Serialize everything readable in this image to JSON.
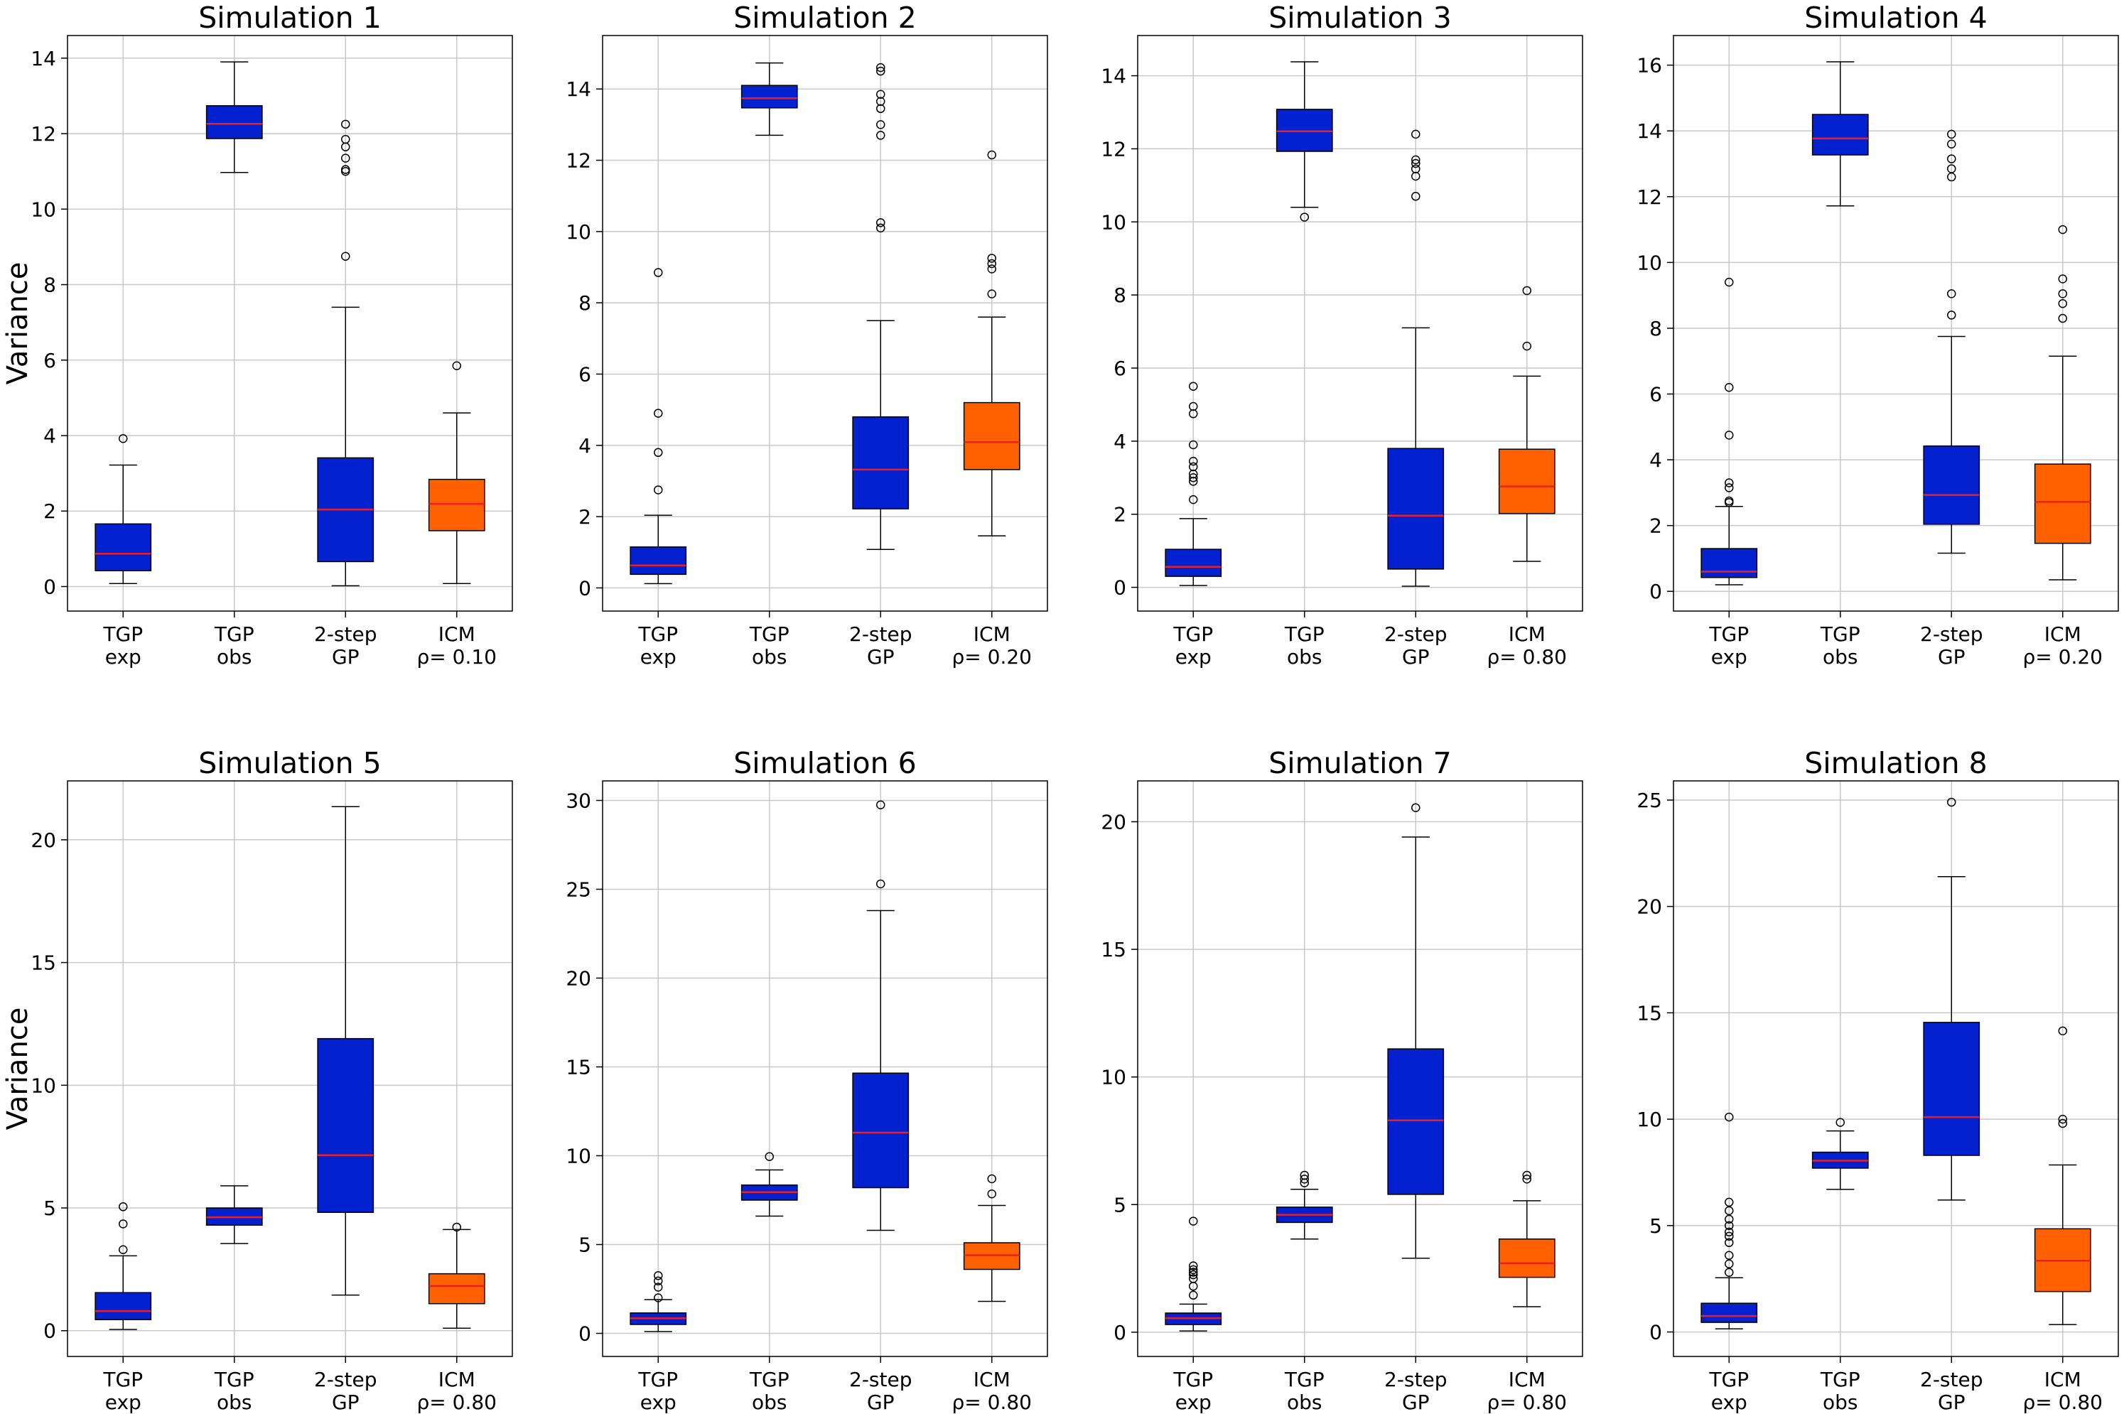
{
  "figure": {
    "colors": {
      "tgp": "#0421cf",
      "icm": "#ff6000",
      "median": "#e8202a",
      "whisker": "#000000",
      "grid": "#c8c8c8"
    }
  },
  "chart_data": [
    {
      "type": "box",
      "title": "Simulation 1",
      "ylabel": "Variance",
      "ylim": [
        -0.65,
        14.6
      ],
      "yticks": [
        0,
        2,
        4,
        6,
        8,
        10,
        12,
        14
      ],
      "categories": [
        {
          "line1": "TGP",
          "line2": "exp"
        },
        {
          "line1": "TGP",
          "line2": "obs"
        },
        {
          "line1": "2-step",
          "line2": "GP"
        },
        {
          "line1": "ICM",
          "line2": "ρ= 0.10"
        }
      ],
      "boxes": [
        {
          "whislo": 0.08,
          "q1": 0.42,
          "med": 0.87,
          "q3": 1.66,
          "whishi": 3.22,
          "fliers": [
            3.92
          ],
          "color": "tgp"
        },
        {
          "whislo": 10.97,
          "q1": 11.87,
          "med": 12.26,
          "q3": 12.74,
          "whishi": 13.9,
          "fliers": [],
          "color": "tgp"
        },
        {
          "whislo": 0.02,
          "q1": 0.66,
          "med": 2.04,
          "q3": 3.41,
          "whishi": 7.4,
          "fliers": [
            8.75,
            11.0,
            11.05,
            11.35,
            11.65,
            11.85,
            12.25
          ],
          "color": "tgp"
        },
        {
          "whislo": 0.08,
          "q1": 1.48,
          "med": 2.19,
          "q3": 2.84,
          "whishi": 4.6,
          "fliers": [
            5.85
          ],
          "color": "icm"
        }
      ]
    },
    {
      "type": "box",
      "title": "Simulation 2",
      "ylabel": "",
      "ylim": [
        -0.65,
        15.5
      ],
      "yticks": [
        0,
        2,
        4,
        6,
        8,
        10,
        12,
        14
      ],
      "categories": [
        {
          "line1": "TGP",
          "line2": "exp"
        },
        {
          "line1": "TGP",
          "line2": "obs"
        },
        {
          "line1": "2-step",
          "line2": "GP"
        },
        {
          "line1": "ICM",
          "line2": "ρ= 0.20"
        }
      ],
      "boxes": [
        {
          "whislo": 0.12,
          "q1": 0.38,
          "med": 0.63,
          "q3": 1.15,
          "whishi": 2.04,
          "fliers": [
            2.75,
            3.8,
            4.9,
            8.85
          ],
          "color": "tgp"
        },
        {
          "whislo": 12.7,
          "q1": 13.47,
          "med": 13.74,
          "q3": 14.1,
          "whishi": 14.73,
          "fliers": [],
          "color": "tgp"
        },
        {
          "whislo": 1.08,
          "q1": 2.22,
          "med": 3.32,
          "q3": 4.8,
          "whishi": 7.5,
          "fliers": [
            10.1,
            10.25,
            12.7,
            13.0,
            13.45,
            13.65,
            13.85,
            14.5,
            14.6
          ],
          "color": "tgp"
        },
        {
          "whislo": 1.46,
          "q1": 3.32,
          "med": 4.09,
          "q3": 5.2,
          "whishi": 7.6,
          "fliers": [
            8.25,
            8.95,
            9.1,
            9.25,
            12.15
          ],
          "color": "icm"
        }
      ]
    },
    {
      "type": "box",
      "title": "Simulation 3",
      "ylabel": "",
      "ylim": [
        -0.65,
        15.1
      ],
      "yticks": [
        0,
        2,
        4,
        6,
        8,
        10,
        12,
        14
      ],
      "categories": [
        {
          "line1": "TGP",
          "line2": "exp"
        },
        {
          "line1": "TGP",
          "line2": "obs"
        },
        {
          "line1": "2-step",
          "line2": "GP"
        },
        {
          "line1": "ICM",
          "line2": "ρ= 0.80"
        }
      ],
      "boxes": [
        {
          "whislo": 0.05,
          "q1": 0.3,
          "med": 0.56,
          "q3": 1.04,
          "whishi": 1.88,
          "fliers": [
            2.4,
            2.9,
            3.0,
            3.1,
            3.3,
            3.45,
            3.9,
            4.75,
            4.95,
            5.5
          ],
          "color": "tgp"
        },
        {
          "whislo": 10.4,
          "q1": 11.93,
          "med": 12.48,
          "q3": 13.08,
          "whishi": 14.38,
          "fliers": [
            10.13
          ],
          "color": "tgp"
        },
        {
          "whislo": 0.03,
          "q1": 0.5,
          "med": 1.96,
          "q3": 3.8,
          "whishi": 7.1,
          "fliers": [
            10.7,
            11.25,
            11.45,
            11.6,
            11.7,
            12.4
          ],
          "color": "tgp"
        },
        {
          "whislo": 0.71,
          "q1": 2.02,
          "med": 2.76,
          "q3": 3.78,
          "whishi": 5.78,
          "fliers": [
            6.6,
            8.12
          ],
          "color": "icm"
        }
      ]
    },
    {
      "type": "box",
      "title": "Simulation 4",
      "ylabel": "",
      "ylim": [
        -0.6,
        16.9
      ],
      "yticks": [
        0,
        2,
        4,
        6,
        8,
        10,
        12,
        14,
        16
      ],
      "categories": [
        {
          "line1": "TGP",
          "line2": "exp"
        },
        {
          "line1": "TGP",
          "line2": "obs"
        },
        {
          "line1": "2-step",
          "line2": "GP"
        },
        {
          "line1": "ICM",
          "line2": "ρ= 0.20"
        }
      ],
      "boxes": [
        {
          "whislo": 0.2,
          "q1": 0.42,
          "med": 0.6,
          "q3": 1.3,
          "whishi": 2.58,
          "fliers": [
            2.7,
            2.75,
            3.15,
            3.3,
            4.75,
            6.2,
            9.4
          ],
          "color": "tgp"
        },
        {
          "whislo": 11.72,
          "q1": 13.27,
          "med": 13.77,
          "q3": 14.5,
          "whishi": 16.1,
          "fliers": [],
          "color": "tgp"
        },
        {
          "whislo": 1.16,
          "q1": 2.04,
          "med": 2.93,
          "q3": 4.42,
          "whishi": 7.75,
          "fliers": [
            8.4,
            9.05,
            12.6,
            12.85,
            13.15,
            13.6,
            13.9
          ],
          "color": "tgp"
        },
        {
          "whislo": 0.35,
          "q1": 1.46,
          "med": 2.72,
          "q3": 3.87,
          "whishi": 7.15,
          "fliers": [
            8.3,
            8.75,
            9.05,
            9.5,
            11.0
          ],
          "color": "icm"
        }
      ]
    },
    {
      "type": "box",
      "title": "Simulation 5",
      "ylabel": "Variance",
      "ylim": [
        -1.05,
        22.4
      ],
      "yticks": [
        0,
        5,
        10,
        15,
        20
      ],
      "categories": [
        {
          "line1": "TGP",
          "line2": "exp"
        },
        {
          "line1": "TGP",
          "line2": "obs"
        },
        {
          "line1": "2-step",
          "line2": "GP"
        },
        {
          "line1": "ICM",
          "line2": "ρ= 0.80"
        }
      ],
      "boxes": [
        {
          "whislo": 0.05,
          "q1": 0.45,
          "med": 0.8,
          "q3": 1.55,
          "whishi": 3.05,
          "fliers": [
            3.3,
            4.35,
            5.05
          ],
          "color": "tgp"
        },
        {
          "whislo": 3.55,
          "q1": 4.3,
          "med": 4.62,
          "q3": 5.0,
          "whishi": 5.9,
          "fliers": [],
          "color": "tgp"
        },
        {
          "whislo": 1.45,
          "q1": 4.82,
          "med": 7.15,
          "q3": 11.9,
          "whishi": 21.35,
          "fliers": [],
          "color": "tgp"
        },
        {
          "whislo": 0.1,
          "q1": 1.1,
          "med": 1.82,
          "q3": 2.32,
          "whishi": 4.12,
          "fliers": [
            4.22
          ],
          "color": "icm"
        }
      ]
    },
    {
      "type": "box",
      "title": "Simulation 6",
      "ylabel": "",
      "ylim": [
        -1.3,
        31.1
      ],
      "yticks": [
        0,
        5,
        10,
        15,
        20,
        25,
        30
      ],
      "categories": [
        {
          "line1": "TGP",
          "line2": "exp"
        },
        {
          "line1": "TGP",
          "line2": "obs"
        },
        {
          "line1": "2-step",
          "line2": "GP"
        },
        {
          "line1": "ICM",
          "line2": "ρ= 0.80"
        }
      ],
      "boxes": [
        {
          "whislo": 0.1,
          "q1": 0.5,
          "med": 0.85,
          "q3": 1.15,
          "whishi": 1.9,
          "fliers": [
            2.0,
            2.6,
            2.95,
            3.25
          ],
          "color": "tgp"
        },
        {
          "whislo": 6.6,
          "q1": 7.5,
          "med": 7.95,
          "q3": 8.35,
          "whishi": 9.2,
          "fliers": [
            9.95
          ],
          "color": "tgp"
        },
        {
          "whislo": 5.8,
          "q1": 8.2,
          "med": 11.3,
          "q3": 14.65,
          "whishi": 23.8,
          "fliers": [
            25.3,
            29.75
          ],
          "color": "tgp"
        },
        {
          "whislo": 1.8,
          "q1": 3.6,
          "med": 4.4,
          "q3": 5.1,
          "whishi": 7.2,
          "fliers": [
            7.85,
            8.7
          ],
          "color": "icm"
        }
      ]
    },
    {
      "type": "box",
      "title": "Simulation 7",
      "ylabel": "",
      "ylim": [
        -0.95,
        21.6
      ],
      "yticks": [
        0,
        5,
        10,
        15,
        20
      ],
      "categories": [
        {
          "line1": "TGP",
          "line2": "exp"
        },
        {
          "line1": "TGP",
          "line2": "obs"
        },
        {
          "line1": "2-step",
          "line2": "GP"
        },
        {
          "line1": "ICM",
          "line2": "ρ= 0.80"
        }
      ],
      "boxes": [
        {
          "whislo": 0.05,
          "q1": 0.3,
          "med": 0.55,
          "q3": 0.75,
          "whishi": 1.1,
          "fliers": [
            1.45,
            1.8,
            2.1,
            2.25,
            2.35,
            2.45,
            2.6,
            4.35
          ],
          "color": "tgp"
        },
        {
          "whislo": 3.65,
          "q1": 4.3,
          "med": 4.6,
          "q3": 4.9,
          "whishi": 5.6,
          "fliers": [
            5.85,
            6.0,
            6.15
          ],
          "color": "tgp"
        },
        {
          "whislo": 2.9,
          "q1": 5.4,
          "med": 8.3,
          "q3": 11.1,
          "whishi": 19.4,
          "fliers": [
            20.55
          ],
          "color": "tgp"
        },
        {
          "whislo": 1.0,
          "q1": 2.15,
          "med": 2.7,
          "q3": 3.65,
          "whishi": 5.15,
          "fliers": [
            6.0,
            6.15
          ],
          "color": "icm"
        }
      ]
    },
    {
      "type": "box",
      "title": "Simulation 8",
      "ylabel": "",
      "ylim": [
        -1.15,
        25.9
      ],
      "yticks": [
        0,
        5,
        10,
        15,
        20,
        25
      ],
      "categories": [
        {
          "line1": "TGP",
          "line2": "exp"
        },
        {
          "line1": "TGP",
          "line2": "obs"
        },
        {
          "line1": "2-step",
          "line2": "GP"
        },
        {
          "line1": "ICM",
          "line2": "ρ= 0.80"
        }
      ],
      "boxes": [
        {
          "whislo": 0.15,
          "q1": 0.45,
          "med": 0.75,
          "q3": 1.35,
          "whishi": 2.55,
          "fliers": [
            2.8,
            3.2,
            3.6,
            4.2,
            4.5,
            4.7,
            5.0,
            5.3,
            5.7,
            6.1,
            10.1
          ],
          "color": "tgp"
        },
        {
          "whislo": 6.7,
          "q1": 7.7,
          "med": 8.05,
          "q3": 8.45,
          "whishi": 9.45,
          "fliers": [
            9.85
          ],
          "color": "tgp"
        },
        {
          "whislo": 6.2,
          "q1": 8.3,
          "med": 10.1,
          "q3": 14.55,
          "whishi": 21.4,
          "fliers": [
            24.9
          ],
          "color": "tgp"
        },
        {
          "whislo": 0.35,
          "q1": 1.9,
          "med": 3.35,
          "q3": 4.85,
          "whishi": 7.85,
          "fliers": [
            9.8,
            10.0,
            14.15
          ],
          "color": "icm"
        }
      ]
    }
  ]
}
